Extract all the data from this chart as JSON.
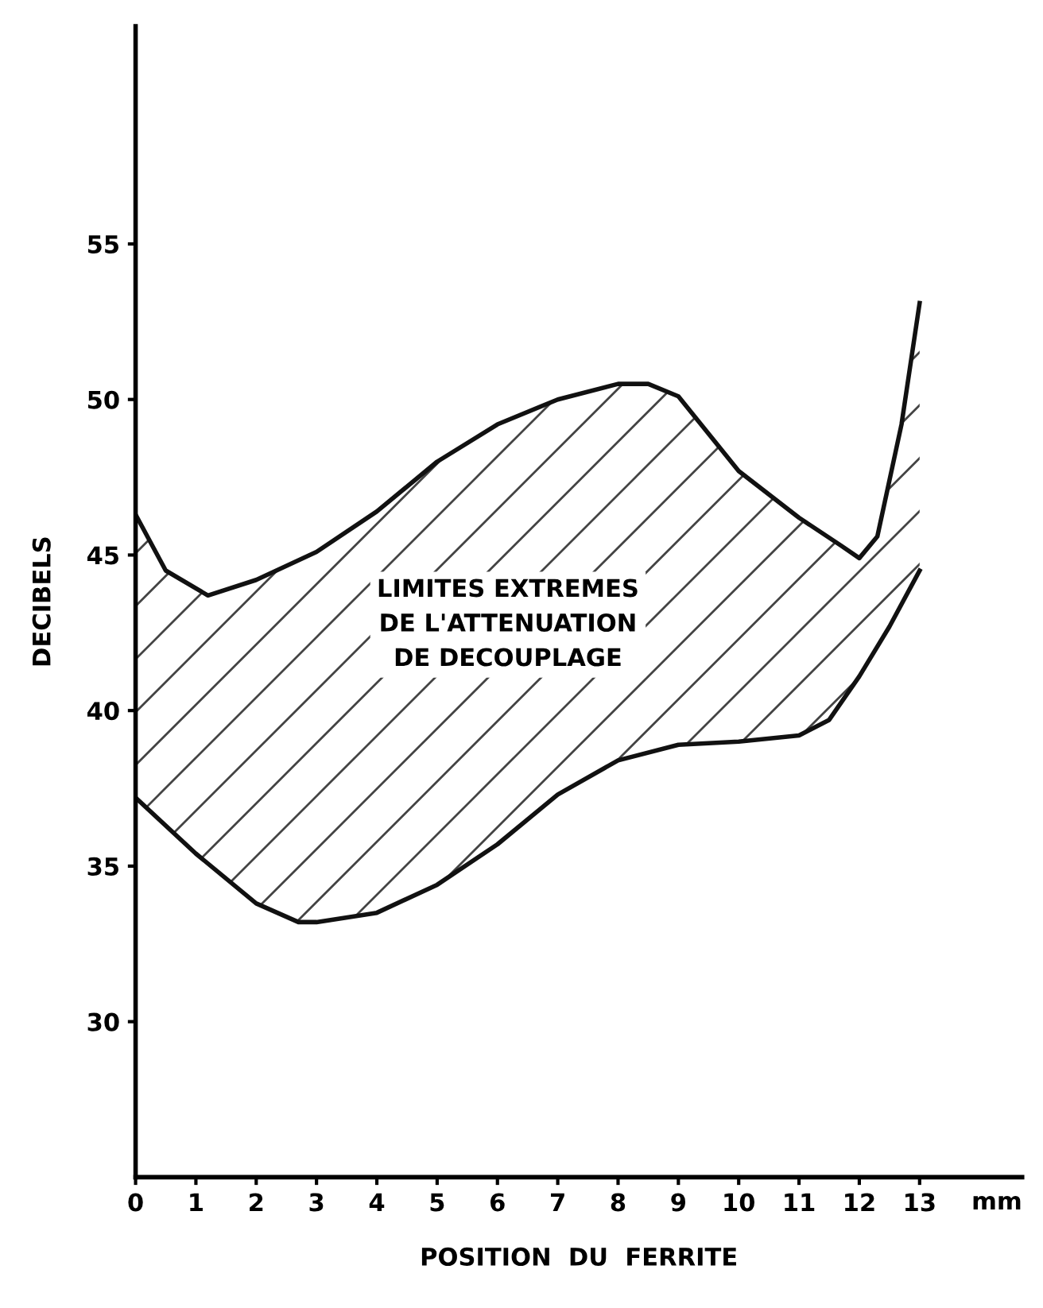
{
  "chart_data": {
    "type": "line",
    "xlabel": "POSITION  DU  FERRITE",
    "ylabel": "DECIBELS",
    "xlim": [
      0,
      14.7
    ],
    "ylim": [
      25,
      62
    ],
    "xticks": [
      0,
      1,
      2,
      3,
      4,
      5,
      6,
      7,
      8,
      9,
      10,
      11,
      12,
      13
    ],
    "yticks": [
      30,
      35,
      40,
      45,
      50,
      55
    ],
    "series": [
      {
        "color": "#111111",
        "x": [
          0,
          0.5,
          1.2,
          2,
          3,
          4,
          5,
          6,
          7,
          8,
          8.5,
          9,
          10,
          11,
          11.7,
          12,
          12.3,
          12.7,
          13
        ],
        "values": [
          46.3,
          44.5,
          43.7,
          44.2,
          45.1,
          46.4,
          48,
          49.2,
          50,
          50.5,
          50.5,
          50.1,
          47.7,
          46.2,
          45.3,
          44.9,
          45.6,
          49.2,
          53.1
        ]
      },
      {
        "color": "#111111",
        "x": [
          0,
          1,
          2,
          2.7,
          3,
          4,
          5,
          6,
          7,
          8,
          9,
          10,
          11,
          11.5,
          12,
          12.5,
          13
        ],
        "values": [
          37.2,
          35.4,
          33.8,
          33.2,
          33.2,
          33.5,
          34.4,
          35.7,
          37.3,
          38.4,
          38.9,
          39,
          39.2,
          39.7,
          41.1,
          42.7,
          44.5
        ]
      }
    ],
    "annotations": [
      "LIMITES EXTREMES\nDE L'ATTENUATION\nDE DECOUPLAGE",
      "mm"
    ],
    "grid": false,
    "marker": "none",
    "line_style": "solid"
  }
}
